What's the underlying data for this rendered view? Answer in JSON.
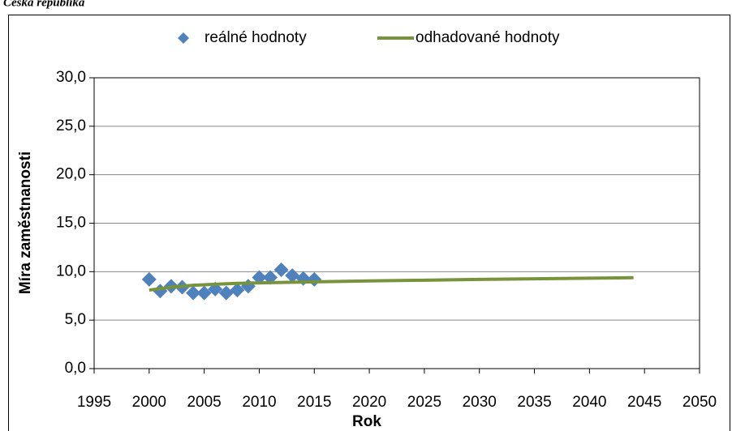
{
  "chart_data": {
    "type": "scatter",
    "title": "Česká republika",
    "xlabel": "Rok",
    "ylabel": "Míra zaměstnanosti",
    "series": [
      {
        "name": "reálné hodnoty",
        "mark": "diamond",
        "color": "#4f81bd",
        "x": [
          2000,
          2001,
          2002,
          2003,
          2004,
          2005,
          2006,
          2007,
          2008,
          2009,
          2010,
          2011,
          2012,
          2013,
          2014,
          2015
        ],
        "values": [
          9.2,
          8.0,
          8.5,
          8.4,
          7.8,
          7.8,
          8.2,
          7.8,
          8.1,
          8.5,
          9.4,
          9.4,
          10.2,
          9.6,
          9.3,
          9.2
        ]
      },
      {
        "name": "odhadované hodnoty",
        "mark": "line",
        "color": "#77933c",
        "x": [
          2000,
          2002,
          2004,
          2006,
          2008,
          2010,
          2015,
          2020,
          2025,
          2030,
          2035,
          2040,
          2044
        ],
        "values": [
          8.1,
          8.4,
          8.6,
          8.7,
          8.8,
          8.85,
          8.95,
          9.05,
          9.12,
          9.2,
          9.27,
          9.33,
          9.38
        ]
      }
    ],
    "xlim": [
      1995,
      2050
    ],
    "xticks": [
      1995,
      2000,
      2005,
      2010,
      2015,
      2020,
      2025,
      2030,
      2035,
      2040,
      2045,
      2050
    ],
    "ylim": [
      0,
      30
    ],
    "yticks": [
      {
        "value": 0,
        "label": "0,0"
      },
      {
        "value": 5,
        "label": "5,0"
      },
      {
        "value": 10,
        "label": "10,0"
      },
      {
        "value": 15,
        "label": "15,0"
      },
      {
        "value": 20,
        "label": "20,0"
      },
      {
        "value": 25,
        "label": "25,0"
      },
      {
        "value": 30,
        "label": "30,0"
      }
    ],
    "grid": true,
    "legend": "top"
  }
}
